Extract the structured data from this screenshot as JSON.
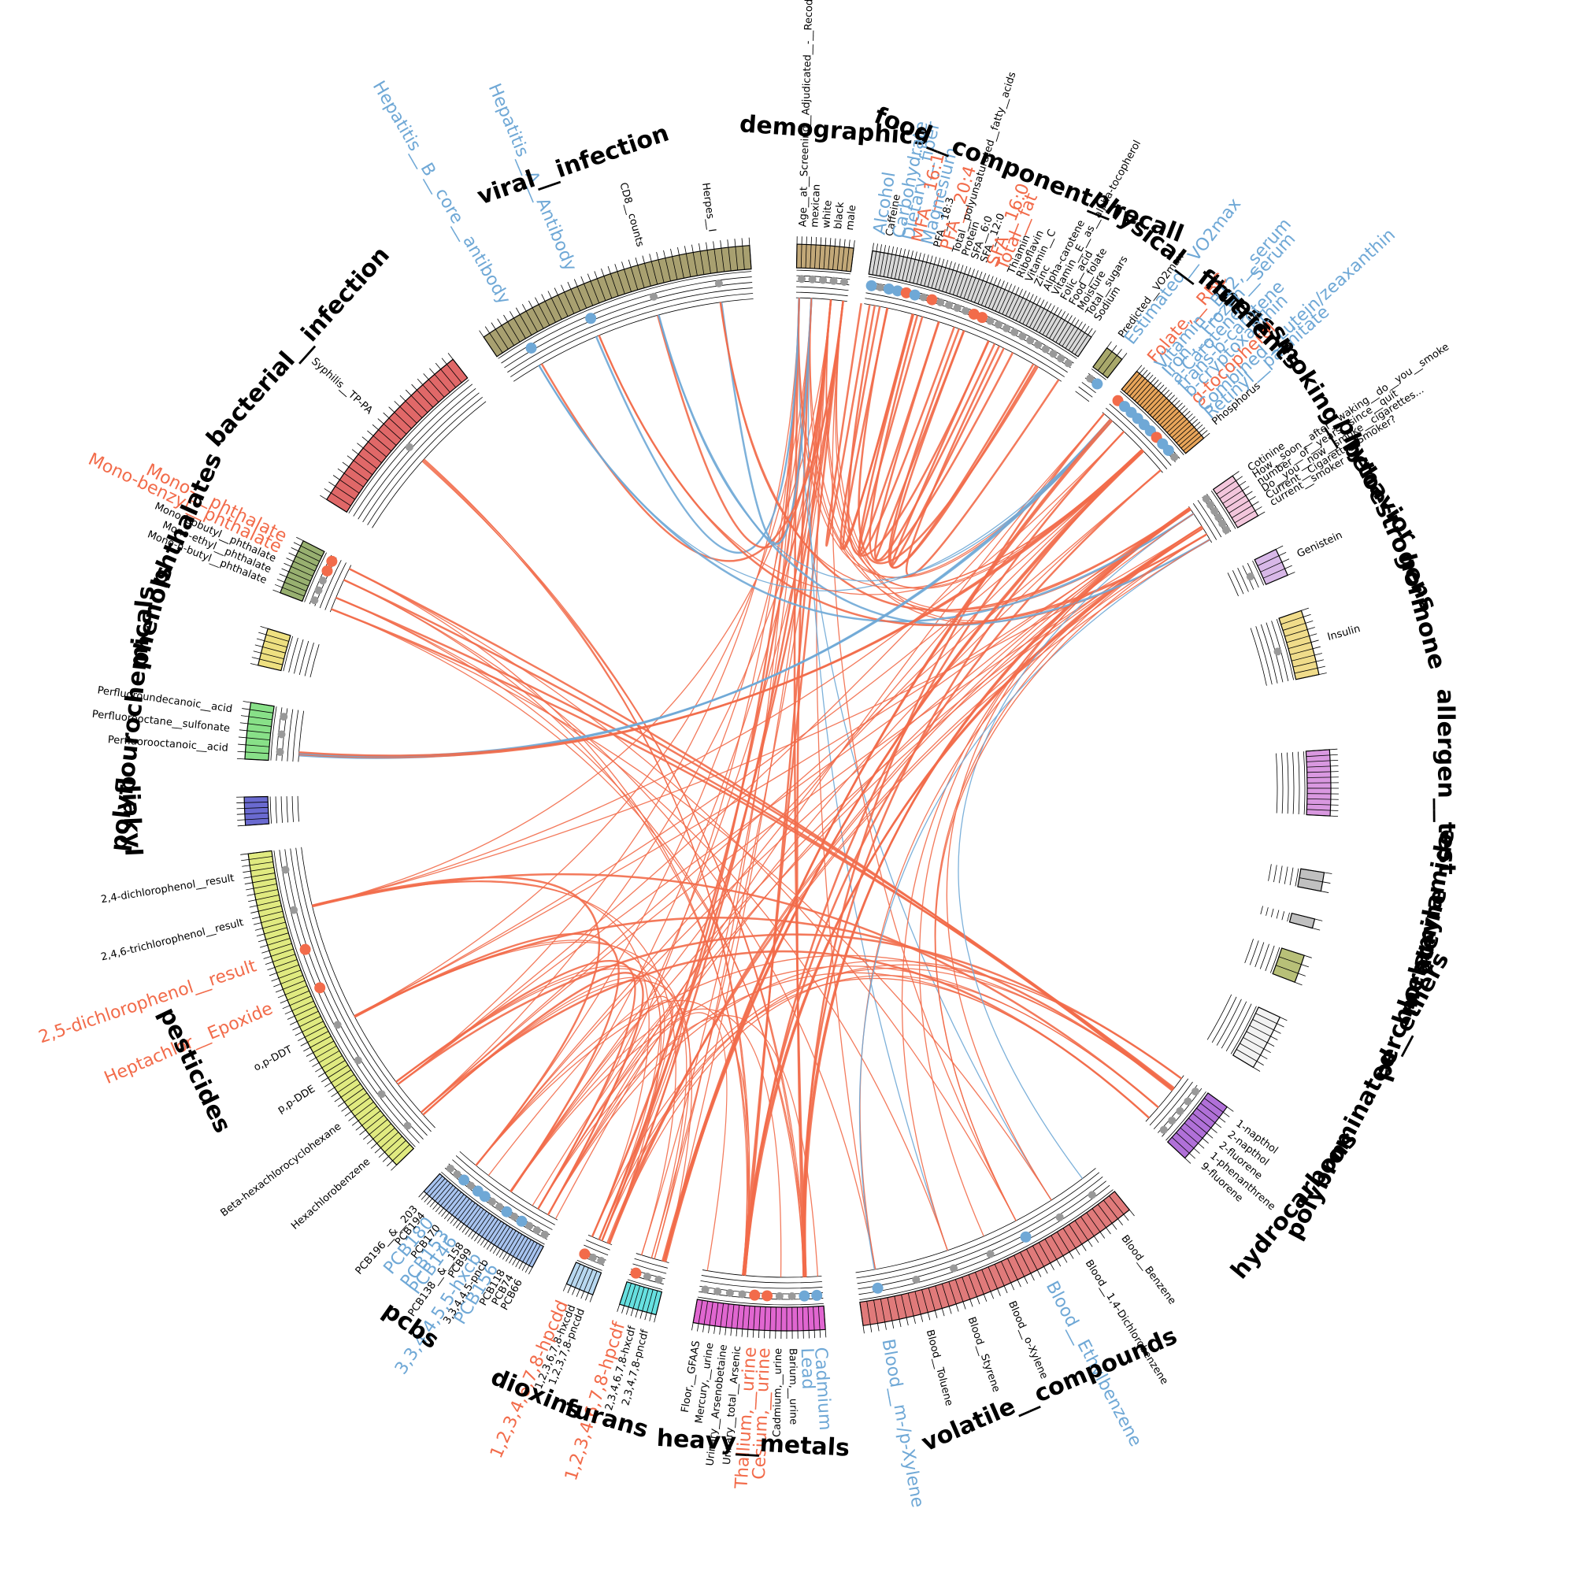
{
  "colors": {
    "positive": "#f26b4a",
    "negative": "#6fa8d6",
    "neutral": "#999999",
    "ring": "#000000"
  },
  "categories": [
    {
      "id": "demographics",
      "label": "demographics",
      "color": "#c2a878",
      "ticks": 12,
      "vars": [
        {
          "label": "Age__at__Screening__Adjudicated__-__Recode",
          "color": "black"
        },
        {
          "label": "mexican",
          "color": "black"
        },
        {
          "label": "white",
          "color": "black"
        },
        {
          "label": "black",
          "color": "black"
        },
        {
          "label": "male",
          "color": "black"
        }
      ]
    },
    {
      "id": "food",
      "label": "food__component__recall",
      "color": "#d9d9d9",
      "ticks": 60,
      "vars": [
        {
          "label": "Alcohol",
          "color": "blue",
          "size": "big"
        },
        {
          "label": "Caffeine",
          "color": "black"
        },
        {
          "label": "Carbohydrate",
          "color": "blue",
          "size": "big"
        },
        {
          "label": "Dietary__fiber",
          "color": "blue",
          "size": "big"
        },
        {
          "label": "MFA__16:1",
          "color": "red",
          "size": "big"
        },
        {
          "label": "Magnesium",
          "color": "blue",
          "size": "big"
        },
        {
          "label": "PFA__18:3",
          "color": "black"
        },
        {
          "label": "PFA__20:4",
          "color": "red",
          "size": "big"
        },
        {
          "label": "Total__polyunsaturated__fatty__acids",
          "color": "black"
        },
        {
          "label": "Protein",
          "color": "black"
        },
        {
          "label": "SFA__6:0",
          "color": "black"
        },
        {
          "label": "SFA__12:0",
          "color": "black"
        },
        {
          "label": "SFA__16:0",
          "color": "red",
          "size": "big"
        },
        {
          "label": "Total__fat",
          "color": "red",
          "size": "big"
        },
        {
          "label": "Thiamin",
          "color": "black"
        },
        {
          "label": "Riboflavin",
          "color": "black"
        },
        {
          "label": "Vitamin__C",
          "color": "black"
        },
        {
          "label": "Zinc",
          "color": "black"
        },
        {
          "label": "Alpha-carotene",
          "color": "black"
        },
        {
          "label": "Vitamin__E__as__alpha-tocopherol",
          "color": "black"
        },
        {
          "label": "Folic__acid",
          "color": "black"
        },
        {
          "label": "Food__folate",
          "color": "black"
        },
        {
          "label": "Moisture",
          "color": "black"
        },
        {
          "label": "Total__sugars",
          "color": "black"
        },
        {
          "label": "Sodium",
          "color": "black"
        }
      ]
    },
    {
      "id": "physical",
      "label": "physical__fitness",
      "color": "#a8a86b",
      "ticks": 3,
      "vars": [
        {
          "label": "Predicted__VO2max",
          "color": "black"
        },
        {
          "label": "Estimated__VO2max",
          "color": "blue",
          "size": "big"
        }
      ]
    },
    {
      "id": "nutrients",
      "label": "nutrients",
      "color": "#e8a55a",
      "ticks": 26,
      "vars": [
        {
          "label": "Folate,__RBC",
          "color": "red",
          "size": "big"
        },
        {
          "label": "Vitamin__B12,__serum",
          "color": "blue",
          "size": "big"
        },
        {
          "label": "Iron,__Frozen__Serum",
          "color": "blue",
          "size": "big"
        },
        {
          "label": "a-Carotene",
          "color": "blue",
          "size": "big"
        },
        {
          "label": "trans-b-carotene",
          "color": "blue",
          "size": "big"
        },
        {
          "label": "b-cryptoxanthin",
          "color": "blue",
          "size": "big"
        },
        {
          "label": "g-tocopherol",
          "color": "red",
          "size": "big"
        },
        {
          "label": "Combined__Lutein/zeaxanthin",
          "color": "blue",
          "size": "big"
        },
        {
          "label": "Retinyl__palmitate",
          "color": "blue",
          "size": "big"
        },
        {
          "label": "Phosphorus",
          "color": "black"
        }
      ]
    },
    {
      "id": "smoking",
      "label": "smoking__behavior",
      "color": "#f3c6dc",
      "ticks": 8,
      "vars": [
        {
          "label": "Cotinine",
          "color": "black"
        },
        {
          "label": "How__soon__after__waking__do__you__smoke",
          "color": "black"
        },
        {
          "label": "number__of__years__since__quit",
          "color": "black"
        },
        {
          "label": "Do__you__now__smoke__cigarettes...",
          "color": "black"
        },
        {
          "label": "Current__Cigarette__Smoker?",
          "color": "black"
        },
        {
          "label": "current__smoker",
          "color": "black"
        }
      ]
    },
    {
      "id": "phyto",
      "label": "phytoestrogens",
      "color": "#d8b8e8",
      "ticks": 4,
      "vars": [
        {
          "label": "Genistein",
          "color": "black"
        }
      ]
    },
    {
      "id": "hormone",
      "label": "hormone",
      "color": "#f0dc8a",
      "ticks": 10,
      "vars": [
        {
          "label": "Insulin",
          "color": "black"
        }
      ]
    },
    {
      "id": "allergen",
      "label": "allergen__test",
      "color": "#d998e0",
      "ticks": 12,
      "vars": []
    },
    {
      "id": "acrylamide",
      "label": "acrylamide",
      "color": "#c0c0c0",
      "ticks": 2,
      "vars": []
    },
    {
      "id": "melamine",
      "label": "melamine",
      "color": "#c0c0c0",
      "ticks": 1,
      "vars": []
    },
    {
      "id": "perchlorate",
      "label": "perchlorate",
      "color": "#b8c078",
      "ticks": 3,
      "vars": []
    },
    {
      "id": "pbde",
      "label": "polybrominated__ethers",
      "color": "#f2f2f2",
      "ticks": 8,
      "vars": []
    },
    {
      "id": "hydro",
      "label": "hydrocarbons",
      "color": "#b070d8",
      "ticks": 10,
      "vars": [
        {
          "label": "1-napthol",
          "color": "black"
        },
        {
          "label": "2-napthol",
          "color": "black"
        },
        {
          "label": "2-fluorene",
          "color": "black"
        },
        {
          "label": "1-phenanthrene",
          "color": "black"
        },
        {
          "label": "9-fluorene",
          "color": "black"
        }
      ]
    },
    {
      "id": "voc",
      "label": "volatile__compounds",
      "color": "#e07a7a",
      "ticks": 40,
      "vars": [
        {
          "label": "Blood__Benzene",
          "color": "black"
        },
        {
          "label": "Blood__1,4-Dichlorobenzene",
          "color": "black"
        },
        {
          "label": "Blood__Ethylbenzene",
          "color": "blue",
          "size": "big"
        },
        {
          "label": "Blood__o-Xylene",
          "color": "black"
        },
        {
          "label": "Blood__Styrene",
          "color": "black"
        },
        {
          "label": "Blood__Toluene",
          "color": "black"
        },
        {
          "label": "Blood__m-/p-Xylene",
          "color": "blue",
          "size": "big"
        }
      ]
    },
    {
      "id": "metals",
      "label": "heavy__metals",
      "color": "#e066d0",
      "ticks": 24,
      "vars": [
        {
          "label": "Cadmium",
          "color": "blue",
          "size": "big"
        },
        {
          "label": "Lead",
          "color": "blue",
          "size": "big"
        },
        {
          "label": "Barium,__urine",
          "color": "black"
        },
        {
          "label": "Cadmium,__urine",
          "color": "black"
        },
        {
          "label": "Cesium,__urine",
          "color": "red",
          "size": "big"
        },
        {
          "label": "Thallium,__urine",
          "color": "red",
          "size": "big"
        },
        {
          "label": "Urinary__total__Arsenic",
          "color": "black"
        },
        {
          "label": "Urinary__Arsenobetaine",
          "color": "black"
        },
        {
          "label": "Mercury,__urine",
          "color": "black"
        },
        {
          "label": "Floor,__GFAAS",
          "color": "black"
        }
      ]
    },
    {
      "id": "furans",
      "label": "furans",
      "color": "#66e0e0",
      "ticks": 8,
      "vars": [
        {
          "label": "2,3,4,7,8-pncdf",
          "color": "black"
        },
        {
          "label": "2,3,4,6,7,8-hxcdf",
          "color": "black"
        },
        {
          "label": "1,2,3,4,6,7,8-hpcdf",
          "color": "red",
          "size": "big"
        }
      ]
    },
    {
      "id": "dioxins",
      "label": "dioxins",
      "color": "#b8d8f0",
      "ticks": 6,
      "vars": [
        {
          "label": "1,2,3,7,8-pncdd",
          "color": "black"
        },
        {
          "label": "1,2,3,6,7,8-hxcdd",
          "color": "black"
        },
        {
          "label": "1,2,3,4,6,7,8-hpcdd",
          "color": "red",
          "size": "big"
        }
      ]
    },
    {
      "id": "pcbs",
      "label": "pcbs",
      "color": "#a8c4f0",
      "ticks": 36,
      "vars": [
        {
          "label": "PCB66",
          "color": "black"
        },
        {
          "label": "PCB74",
          "color": "black"
        },
        {
          "label": "PCB118",
          "color": "black"
        },
        {
          "label": "PCB156",
          "color": "blue",
          "size": "big"
        },
        {
          "label": "3,3,4,4,5-pncb",
          "color": "black"
        },
        {
          "label": "3,3,4,4,5,5-hxcb",
          "color": "blue",
          "size": "big"
        },
        {
          "label": "PCB99",
          "color": "black"
        },
        {
          "label": "PCB138__&__158",
          "color": "black"
        },
        {
          "label": "PCB146",
          "color": "blue",
          "size": "big"
        },
        {
          "label": "PCB153",
          "color": "blue",
          "size": "big"
        },
        {
          "label": "PCB170",
          "color": "black"
        },
        {
          "label": "PCB180",
          "color": "blue",
          "size": "big"
        },
        {
          "label": "PCB194",
          "color": "black"
        },
        {
          "label": "PCB196__&__203",
          "color": "black"
        }
      ]
    },
    {
      "id": "pesticides",
      "label": "pesticides",
      "color": "#e0ea80",
      "ticks": 60,
      "vars": [
        {
          "label": "Hexachlorobenzene",
          "color": "black"
        },
        {
          "label": "Beta-hexachlorocyclohexane",
          "color": "black"
        },
        {
          "label": "p,p-DDE",
          "color": "black"
        },
        {
          "label": "o,p-DDT",
          "color": "black"
        },
        {
          "label": "Heptachlor__Epoxide",
          "color": "red",
          "size": "big"
        },
        {
          "label": "2,5-dichlorophenol__result",
          "color": "red",
          "size": "big"
        },
        {
          "label": "2,4,6-trichlorophenol__result",
          "color": "black"
        },
        {
          "label": "2,4-dichlorophenol__result",
          "color": "black"
        }
      ]
    },
    {
      "id": "diakyl",
      "label": "diakyl",
      "color": "#6a6ad0",
      "ticks": 5,
      "vars": []
    },
    {
      "id": "pfc",
      "label": "polyflourochemicals",
      "color": "#88e088",
      "ticks": 8,
      "vars": [
        {
          "label": "Perfluorooctanoic__acid",
          "color": "black"
        },
        {
          "label": "Perfluorooctane__sulfonate",
          "color": "black"
        },
        {
          "label": "Perfluoroundecanoic__acid",
          "color": "black"
        }
      ]
    },
    {
      "id": "phenols",
      "label": "phenols",
      "color": "#eee080",
      "ticks": 6,
      "vars": []
    },
    {
      "id": "phthalates",
      "label": "phthalates",
      "color": "#98b070",
      "ticks": 10,
      "vars": [
        {
          "label": "Mono-n-butyl__phthalate",
          "color": "black"
        },
        {
          "label": "Mono-ethyl__phthalate",
          "color": "black"
        },
        {
          "label": "Mono-isobutyl__phthalate",
          "color": "black"
        },
        {
          "label": "Mono-benzyl__phthalate",
          "color": "red",
          "size": "big"
        },
        {
          "label": "Mono-__phthalate",
          "color": "red",
          "size": "big"
        }
      ]
    },
    {
      "id": "bacterial",
      "label": "bacterial__infection",
      "color": "#e06868",
      "ticks": 24,
      "vars": [
        {
          "label": "Syphilis__TP-PA",
          "color": "black"
        }
      ]
    },
    {
      "id": "viral",
      "label": "viral__infection",
      "color": "#a8a070",
      "ticks": 40,
      "vars": [
        {
          "label": "Hepatitis__B__core__antibody",
          "color": "blue",
          "size": "big"
        },
        {
          "label": "Hepatitis__A__Antibody",
          "color": "blue",
          "size": "big"
        },
        {
          "label": "CD8__counts",
          "color": "black"
        },
        {
          "label": "Herpes__I",
          "color": "black"
        }
      ]
    }
  ]
}
